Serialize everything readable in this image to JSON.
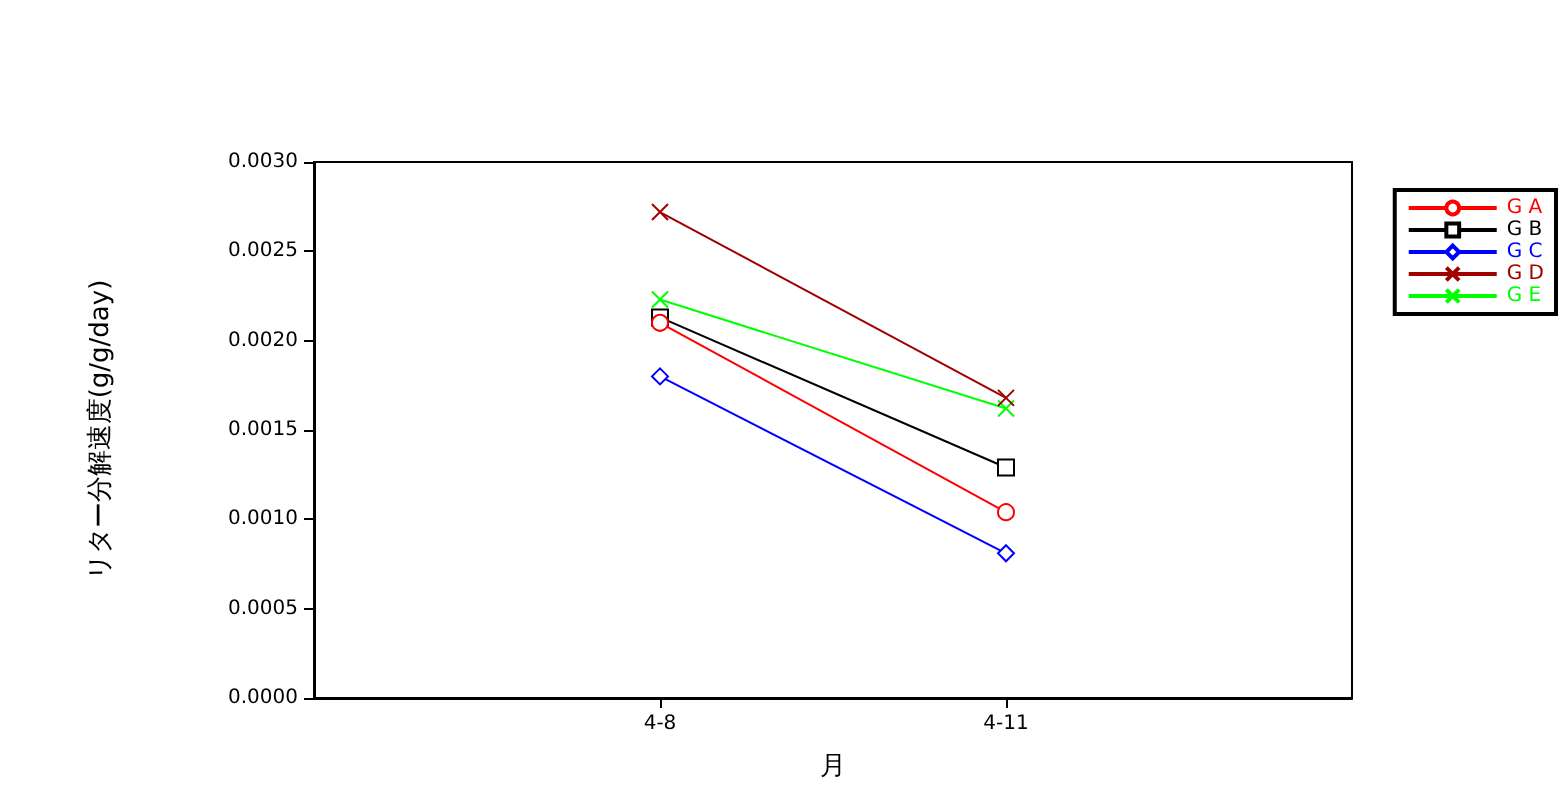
{
  "chart_data": {
    "type": "line",
    "xlabel": "月",
    "ylabel": "リター分解速度(g/g/day)",
    "categories": [
      "4-8",
      "4-11"
    ],
    "ylim": [
      0,
      0.003
    ],
    "yticks": [
      {
        "value": 0,
        "label": "0.0000"
      },
      {
        "value": 0.0005,
        "label": "0.0005"
      },
      {
        "value": 0.001,
        "label": "0.0010"
      },
      {
        "value": 0.0015,
        "label": "0.0015"
      },
      {
        "value": 0.002,
        "label": "0.0020"
      },
      {
        "value": 0.0025,
        "label": "0.0025"
      },
      {
        "value": 0.003,
        "label": "0.0030"
      }
    ],
    "grid": false,
    "legend": "top right",
    "line_style": "solid",
    "series": [
      {
        "name": "G A",
        "color": "#ff0000",
        "marker": "circle",
        "values": [
          0.0021,
          0.00104
        ]
      },
      {
        "name": "G B",
        "color": "#000000",
        "marker": "square",
        "values": [
          0.00213,
          0.00129
        ]
      },
      {
        "name": "G C",
        "color": "#0000ff",
        "marker": "diamond",
        "values": [
          0.0018,
          0.00081
        ]
      },
      {
        "name": "G D",
        "color": "#a00000",
        "marker": "cross",
        "values": [
          0.00272,
          0.00168
        ]
      },
      {
        "name": "G E",
        "color": "#00ff00",
        "marker": "cross",
        "values": [
          0.00223,
          0.00162
        ]
      }
    ]
  }
}
